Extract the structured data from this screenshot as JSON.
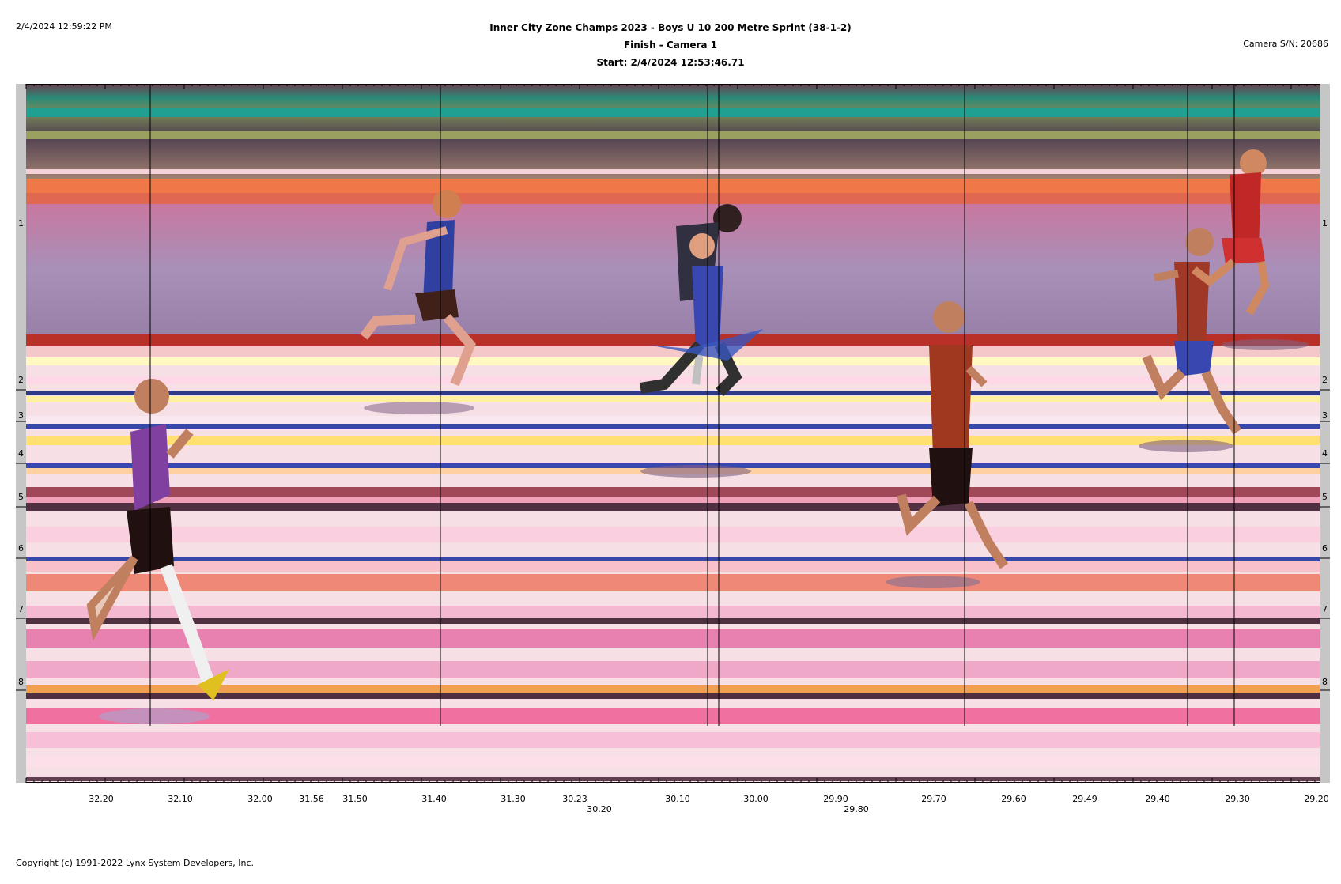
{
  "print_datetime": "2/4/2024 12:59:22 PM",
  "header": {
    "title": "Inner City Zone Champs 2023 - Boys U 10 200 Metre Sprint (38-1-2)",
    "subtitle": "Finish - Camera 1",
    "start": "Start: 2/4/2024 12:53:46.71"
  },
  "camera_sn": "Camera S/N: 20686",
  "copyright": "Copyright (c) 1991-2022 Lynx System Developers, Inc.",
  "lanes": [
    "1",
    "2",
    "3",
    "4",
    "5",
    "6",
    "7",
    "8"
  ],
  "time_axis": {
    "row1": [
      "32.20",
      "32.10",
      "32.00",
      "31.56",
      "31.50",
      "31.40",
      "31.30",
      "30.23",
      "30.10",
      "30.00",
      "29.90",
      "29.70",
      "29.60",
      "29.49",
      "29.40",
      "29.30",
      "29.20"
    ],
    "row2": [
      "30.20",
      "29.80"
    ]
  },
  "colors": {
    "frame_gray": "#c6c6c6",
    "track_pink": "#f0a8c8",
    "track_orange": "#f07848",
    "lane_line_blue": "#3848a8",
    "lane_line_dark": "#503040"
  }
}
